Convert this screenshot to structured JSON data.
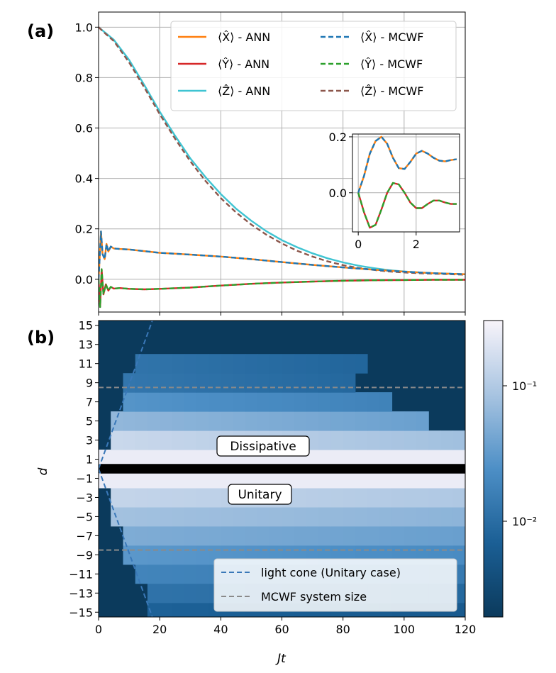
{
  "chart_data": [
    {
      "type": "line",
      "panel_label": "(a)",
      "xlim": [
        0,
        120
      ],
      "ylim": [
        -0.13,
        1.06
      ],
      "xticks": [
        0,
        20,
        40,
        60,
        80,
        100,
        120
      ],
      "yticks": [
        0.0,
        0.2,
        0.4,
        0.6,
        0.8,
        1.0
      ],
      "ytick_labels": [
        "0.0",
        "0.2",
        "0.4",
        "0.6",
        "0.8",
        "1.0"
      ],
      "grid": true,
      "legend_position": "top-right",
      "legend": [
        {
          "label": "⟨X̂⟩ - ANN",
          "color": "#ff7f0e",
          "dash": "solid"
        },
        {
          "label": "⟨Ŷ⟩ - ANN",
          "color": "#d62728",
          "dash": "solid"
        },
        {
          "label": "⟨Ẑ⟩ - ANN",
          "color": "#3fc4d2",
          "dash": "solid"
        },
        {
          "label": "⟨X̂⟩ - MCWF",
          "color": "#1f77b4",
          "dash": "dashed"
        },
        {
          "label": "⟨Ŷ⟩ - MCWF",
          "color": "#2ca02c",
          "dash": "dashed"
        },
        {
          "label": "⟨Ẑ⟩ - MCWF",
          "color": "#8c564b",
          "dash": "dashed"
        }
      ],
      "series": [
        {
          "name": "⟨Ẑ⟩ - ANN",
          "color": "#3fc4d2",
          "dash": "solid",
          "x": [
            0,
            2,
            5,
            10,
            15,
            20,
            25,
            30,
            35,
            40,
            45,
            50,
            55,
            60,
            65,
            70,
            75,
            80,
            85,
            90,
            95,
            100,
            105,
            110,
            115,
            120
          ],
          "y": [
            1.0,
            0.98,
            0.95,
            0.87,
            0.77,
            0.665,
            0.57,
            0.48,
            0.405,
            0.338,
            0.28,
            0.232,
            0.19,
            0.155,
            0.127,
            0.103,
            0.083,
            0.067,
            0.054,
            0.044,
            0.036,
            0.031,
            0.027,
            0.024,
            0.022,
            0.02
          ]
        },
        {
          "name": "⟨Ẑ⟩ - MCWF",
          "color": "#8c564b",
          "dash": "dashed",
          "x": [
            0,
            2,
            5,
            10,
            15,
            20,
            25,
            30,
            35,
            40,
            45,
            50,
            55,
            60,
            65,
            70,
            75,
            80,
            85,
            90,
            95,
            100,
            105,
            110,
            115,
            120
          ],
          "y": [
            1.0,
            0.977,
            0.945,
            0.86,
            0.76,
            0.655,
            0.558,
            0.468,
            0.39,
            0.322,
            0.265,
            0.217,
            0.176,
            0.142,
            0.113,
            0.09,
            0.071,
            0.056,
            0.045,
            0.037,
            0.031,
            0.027,
            0.024,
            0.022,
            0.02,
            0.018
          ]
        },
        {
          "name": "⟨X̂⟩ - ANN",
          "color": "#ff7f0e",
          "dash": "solid",
          "x": [
            0,
            0.5,
            0.8,
            1.3,
            2,
            2.6,
            3.2,
            4,
            5,
            7,
            10,
            20,
            30,
            40,
            50,
            60,
            70,
            80,
            90,
            100,
            110,
            120
          ],
          "y": [
            0,
            0.12,
            0.19,
            0.1,
            0.08,
            0.14,
            0.11,
            0.13,
            0.122,
            0.12,
            0.118,
            0.105,
            0.098,
            0.09,
            0.08,
            0.068,
            0.057,
            0.047,
            0.038,
            0.03,
            0.024,
            0.02
          ]
        },
        {
          "name": "⟨X̂⟩ - MCWF",
          "color": "#1f77b4",
          "dash": "dashed",
          "x": [
            0,
            0.5,
            0.8,
            1.3,
            2,
            2.6,
            3.2,
            4,
            5,
            7,
            10,
            20,
            30,
            40,
            50,
            60,
            70,
            80,
            90,
            100,
            110,
            120
          ],
          "y": [
            0,
            0.12,
            0.19,
            0.1,
            0.08,
            0.14,
            0.11,
            0.13,
            0.122,
            0.12,
            0.118,
            0.105,
            0.098,
            0.09,
            0.08,
            0.068,
            0.057,
            0.047,
            0.038,
            0.03,
            0.024,
            0.02
          ]
        },
        {
          "name": "⟨Ŷ⟩ - ANN",
          "color": "#d62728",
          "dash": "solid",
          "x": [
            0,
            0.5,
            1.0,
            1.6,
            2.4,
            3.2,
            4,
            5,
            7,
            10,
            15,
            20,
            30,
            40,
            50,
            60,
            70,
            80,
            90,
            100,
            110,
            120
          ],
          "y": [
            0,
            -0.11,
            0.04,
            -0.06,
            -0.02,
            -0.045,
            -0.03,
            -0.037,
            -0.035,
            -0.038,
            -0.04,
            -0.038,
            -0.033,
            -0.025,
            -0.018,
            -0.013,
            -0.009,
            -0.006,
            -0.004,
            -0.003,
            -0.002,
            -0.002
          ]
        },
        {
          "name": "⟨Ŷ⟩ - MCWF",
          "color": "#2ca02c",
          "dash": "dashed",
          "x": [
            0,
            0.5,
            1.0,
            1.6,
            2.4,
            3.2,
            4,
            5,
            7,
            10,
            15,
            20,
            30,
            40,
            50,
            60,
            70,
            80,
            90,
            100,
            110,
            120
          ],
          "y": [
            0,
            -0.11,
            0.04,
            -0.06,
            -0.02,
            -0.045,
            -0.03,
            -0.037,
            -0.035,
            -0.038,
            -0.04,
            -0.038,
            -0.033,
            -0.025,
            -0.018,
            -0.013,
            -0.009,
            -0.006,
            -0.004,
            -0.003,
            -0.002,
            -0.002
          ]
        }
      ]
    },
    {
      "type": "line",
      "panel_label": "inset",
      "xlim": [
        -0.2,
        3.5
      ],
      "ylim": [
        -0.14,
        0.21
      ],
      "xticks": [
        0,
        2
      ],
      "yticks": [
        0.0,
        0.2
      ],
      "ytick_labels": [
        "0.0",
        "0.2"
      ],
      "series": [
        {
          "name": "⟨X̂⟩ - ANN",
          "color": "#ff7f0e",
          "dash": "solid",
          "x": [
            0,
            0.2,
            0.4,
            0.6,
            0.8,
            1.0,
            1.2,
            1.4,
            1.6,
            1.8,
            2.0,
            2.2,
            2.4,
            2.6,
            2.8,
            3.0,
            3.2,
            3.4
          ],
          "y": [
            0,
            0.06,
            0.14,
            0.185,
            0.2,
            0.175,
            0.125,
            0.088,
            0.085,
            0.11,
            0.14,
            0.15,
            0.14,
            0.125,
            0.115,
            0.112,
            0.117,
            0.12
          ]
        },
        {
          "name": "⟨X̂⟩ - MCWF",
          "color": "#1f77b4",
          "dash": "dashed",
          "x": [
            0,
            0.2,
            0.4,
            0.6,
            0.8,
            1.0,
            1.2,
            1.4,
            1.6,
            1.8,
            2.0,
            2.2,
            2.4,
            2.6,
            2.8,
            3.0,
            3.2,
            3.4
          ],
          "y": [
            0,
            0.06,
            0.14,
            0.185,
            0.2,
            0.175,
            0.125,
            0.088,
            0.085,
            0.11,
            0.14,
            0.15,
            0.14,
            0.125,
            0.115,
            0.112,
            0.117,
            0.12
          ]
        },
        {
          "name": "⟨Ŷ⟩ - ANN",
          "color": "#d62728",
          "dash": "solid",
          "x": [
            0,
            0.2,
            0.4,
            0.6,
            0.8,
            1.0,
            1.2,
            1.4,
            1.6,
            1.8,
            2.0,
            2.2,
            2.4,
            2.6,
            2.8,
            3.0,
            3.2,
            3.4
          ],
          "y": [
            0,
            -0.07,
            -0.125,
            -0.115,
            -0.06,
            0.0,
            0.035,
            0.03,
            0.0,
            -0.035,
            -0.055,
            -0.055,
            -0.04,
            -0.028,
            -0.028,
            -0.035,
            -0.04,
            -0.04
          ]
        },
        {
          "name": "⟨Ŷ⟩ - MCWF",
          "color": "#2ca02c",
          "dash": "dashed",
          "x": [
            0,
            0.2,
            0.4,
            0.6,
            0.8,
            1.0,
            1.2,
            1.4,
            1.6,
            1.8,
            2.0,
            2.2,
            2.4,
            2.6,
            2.8,
            3.0,
            3.2,
            3.4
          ],
          "y": [
            0,
            -0.07,
            -0.125,
            -0.115,
            -0.06,
            0.0,
            0.035,
            0.03,
            0.0,
            -0.035,
            -0.055,
            -0.055,
            -0.04,
            -0.028,
            -0.028,
            -0.035,
            -0.04,
            -0.04
          ]
        }
      ]
    },
    {
      "type": "heatmap",
      "panel_label": "(b)",
      "xlabel": "Jt",
      "ylabel": "d",
      "xlim": [
        0,
        120
      ],
      "ylim": [
        -15.5,
        15.5
      ],
      "xticks": [
        0,
        20,
        40,
        60,
        80,
        100,
        120
      ],
      "yticks": [
        15,
        13,
        11,
        9,
        7,
        5,
        3,
        1,
        -1,
        -3,
        -5,
        -7,
        -9,
        -11,
        -13,
        -15
      ],
      "colormap": "log scale, dark blue (#0b3a5c) to white",
      "colorbar_ticks": [
        "10⁻¹",
        "10⁻²"
      ],
      "annotations": [
        "Dissipative",
        "Unitary"
      ],
      "legend_position": "bottom-right",
      "legend": [
        {
          "label": "light cone (Unitary case)",
          "color": "#3a78b8",
          "dash": "dashed"
        },
        {
          "label": "MCWF system size",
          "color": "#8a8a8a",
          "dash": "dashed"
        }
      ],
      "light_cone_slope_d_per_Jt": 0.88,
      "mcwf_system_size_d": [
        8.5,
        -8.5
      ]
    }
  ]
}
